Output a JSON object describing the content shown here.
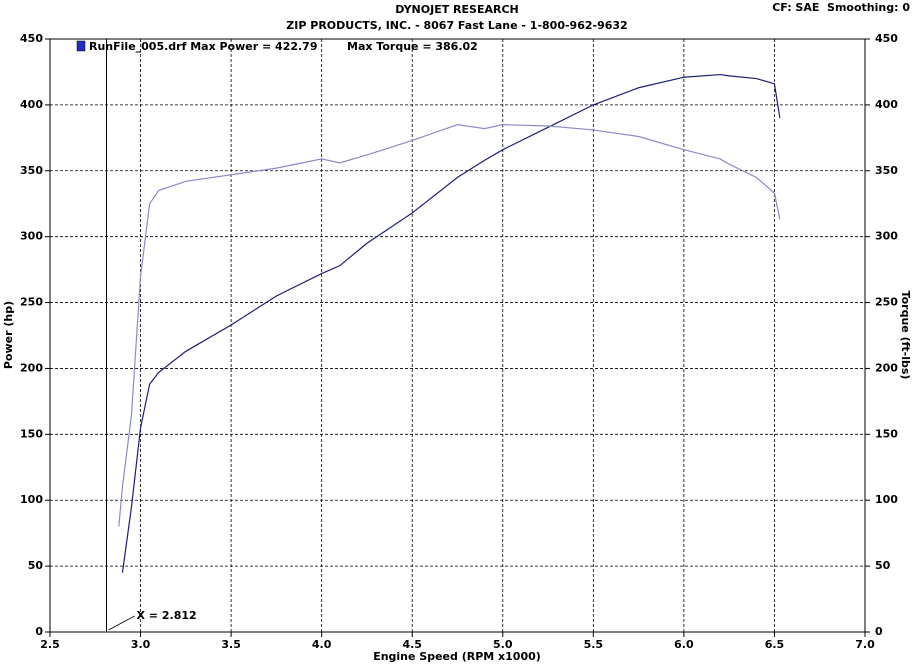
{
  "chart_data": {
    "type": "line",
    "title": "DYNOJET RESEARCH",
    "subtitle": "ZIP PRODUCTS, INC. - 8067 Fast Lane - 1-800-962-9632",
    "corner_note": "CF: SAE  Smoothing: 0",
    "x_label": "Engine Speed (RPM x1000)",
    "y_label": "Power (hp)",
    "y2_label": "Torque (ft-lbs)",
    "legend_texts": [
      "RunFile_005.drf Max Power = 422.79",
      "Max Torque = 386.02"
    ],
    "cursor": {
      "value": 2.812,
      "label": "X = 2.812"
    },
    "x": [
      2.88,
      2.9,
      2.95,
      3.0,
      3.05,
      3.1,
      3.25,
      3.5,
      3.75,
      4.0,
      4.1,
      4.25,
      4.5,
      4.75,
      4.9,
      5.0,
      5.25,
      5.5,
      5.75,
      6.0,
      6.2,
      6.25,
      6.4,
      6.5,
      6.53
    ],
    "series": [
      {
        "color": "#1c1c7c",
        "values": [
          null,
          45,
          95,
          155,
          188,
          197,
          213,
          233,
          255,
          272,
          278,
          295,
          318,
          345,
          358,
          366,
          383,
          400,
          413,
          421,
          423,
          422,
          420,
          416,
          390
        ]
      },
      {
        "color": "#8a8acb",
        "axis": "y2",
        "values": [
          80,
          110,
          165,
          270,
          325,
          335,
          342,
          347,
          352,
          359,
          356,
          362,
          373,
          385,
          382,
          385,
          384,
          381,
          376,
          366,
          359,
          355,
          345,
          333,
          313
        ]
      }
    ],
    "xlim": [
      2.5,
      7.0
    ],
    "xticks": [
      2.5,
      {
        "value": 3,
        "label": "3.0"
      },
      3.5,
      {
        "value": 4,
        "label": "4.0"
      },
      4.5,
      {
        "value": 5,
        "label": "5.0"
      },
      5.5,
      {
        "value": 6,
        "label": "6.0"
      },
      6.5,
      {
        "value": 7,
        "label": "7.0"
      }
    ],
    "ylim": [
      0,
      450
    ],
    "yticks": [
      0,
      50,
      100,
      150,
      200,
      250,
      300,
      350,
      400,
      450
    ],
    "y2lim": [
      0,
      450
    ],
    "y2ticks": [
      0,
      50,
      100,
      150,
      200,
      250,
      300,
      350,
      400,
      450
    ],
    "grid": true
  }
}
